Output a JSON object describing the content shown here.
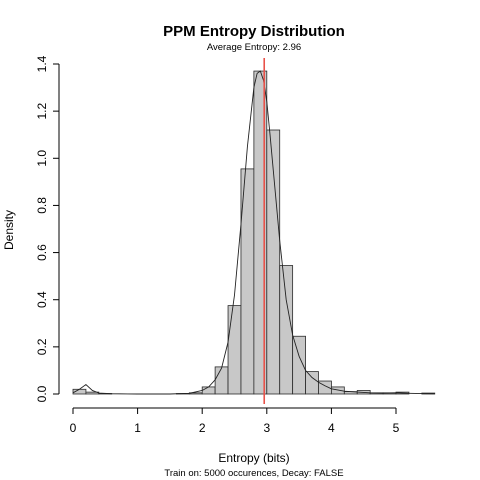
{
  "chart_data": {
    "type": "histogram",
    "title": "PPM Entropy Distribution",
    "subtitle": "Average Entropy: 2.96",
    "xlabel": "Entropy (bits)",
    "ylabel": "Density",
    "footer": "Train on: 5000 occurences, Decay: FALSE",
    "xlim": [
      0,
      5.6
    ],
    "ylim": [
      0,
      1.4
    ],
    "x_ticks": [
      0,
      1,
      2,
      3,
      4,
      5
    ],
    "y_ticks": [
      0.0,
      0.2,
      0.4,
      0.6,
      0.8,
      1.0,
      1.2,
      1.4
    ],
    "y_tick_labels": [
      "0.0",
      "0.2",
      "0.4",
      "0.6",
      "0.8",
      "1.0",
      "1.2",
      "1.4"
    ],
    "bin_width": 0.2,
    "bins": [
      {
        "start": 0.0,
        "density": 0.02
      },
      {
        "start": 0.2,
        "density": 0.008
      },
      {
        "start": 0.4,
        "density": 0.002
      },
      {
        "start": 0.6,
        "density": 0.0
      },
      {
        "start": 0.8,
        "density": 0.0
      },
      {
        "start": 1.0,
        "density": 0.0
      },
      {
        "start": 1.2,
        "density": 0.0
      },
      {
        "start": 1.4,
        "density": 0.0
      },
      {
        "start": 1.6,
        "density": 0.002
      },
      {
        "start": 1.8,
        "density": 0.005
      },
      {
        "start": 2.0,
        "density": 0.03
      },
      {
        "start": 2.2,
        "density": 0.115
      },
      {
        "start": 2.4,
        "density": 0.375
      },
      {
        "start": 2.6,
        "density": 0.955
      },
      {
        "start": 2.8,
        "density": 1.37
      },
      {
        "start": 3.0,
        "density": 1.12
      },
      {
        "start": 3.2,
        "density": 0.545
      },
      {
        "start": 3.4,
        "density": 0.245
      },
      {
        "start": 3.6,
        "density": 0.095
      },
      {
        "start": 3.8,
        "density": 0.055
      },
      {
        "start": 4.0,
        "density": 0.03
      },
      {
        "start": 4.2,
        "density": 0.01
      },
      {
        "start": 4.4,
        "density": 0.015
      },
      {
        "start": 4.6,
        "density": 0.005
      },
      {
        "start": 4.8,
        "density": 0.005
      },
      {
        "start": 5.0,
        "density": 0.008
      },
      {
        "start": 5.2,
        "density": 0.0
      },
      {
        "start": 5.4,
        "density": 0.004
      }
    ],
    "density_curve": {
      "x": [
        0.0,
        0.1,
        0.2,
        0.3,
        0.4,
        0.6,
        1.0,
        1.5,
        1.8,
        2.0,
        2.1,
        2.2,
        2.3,
        2.4,
        2.5,
        2.6,
        2.7,
        2.8,
        2.85,
        2.9,
        2.95,
        3.0,
        3.05,
        3.1,
        3.2,
        3.3,
        3.4,
        3.5,
        3.6,
        3.7,
        3.8,
        3.9,
        4.0,
        4.2,
        4.4,
        4.6,
        4.8,
        5.0,
        5.2,
        5.4,
        5.6
      ],
      "y": [
        0.005,
        0.02,
        0.04,
        0.015,
        0.004,
        0.001,
        0.0,
        0.0,
        0.003,
        0.015,
        0.03,
        0.06,
        0.11,
        0.22,
        0.42,
        0.72,
        1.05,
        1.3,
        1.36,
        1.37,
        1.33,
        1.24,
        1.1,
        0.95,
        0.65,
        0.4,
        0.25,
        0.16,
        0.1,
        0.07,
        0.05,
        0.035,
        0.022,
        0.012,
        0.008,
        0.005,
        0.004,
        0.005,
        0.003,
        0.002,
        0.001
      ]
    },
    "mean_line": {
      "x": 2.96,
      "color": "#e8524a"
    }
  }
}
